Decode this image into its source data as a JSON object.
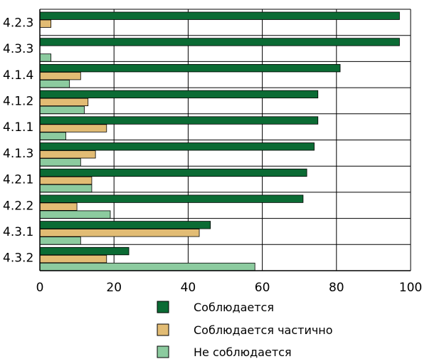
{
  "chart_data": {
    "type": "bar",
    "orientation": "horizontal",
    "categories": [
      "4.2.3",
      "4.3.3",
      "4.1.4",
      "4.1.2",
      "4.1.1",
      "4.1.3",
      "4.2.1",
      "4.2.2",
      "4.3.1",
      "4.3.2"
    ],
    "series": [
      {
        "name": "Соблюдается",
        "color": "#0b6b34",
        "values": [
          97,
          97,
          81,
          75,
          75,
          74,
          72,
          71,
          46,
          24
        ]
      },
      {
        "name": "Соблюдается частично",
        "color": "#e2bc74",
        "values": [
          3,
          0,
          11,
          13,
          18,
          15,
          14,
          10,
          43,
          18
        ]
      },
      {
        "name": "Не соблюдается",
        "color": "#8ccb9f",
        "values": [
          0,
          3,
          8,
          12,
          7,
          11,
          14,
          19,
          11,
          58
        ]
      }
    ],
    "xlim": [
      0,
      100
    ],
    "xticks": [
      "0",
      "20",
      "40",
      "60",
      "80",
      "100"
    ],
    "grid": true,
    "legend_position": "bottom"
  }
}
